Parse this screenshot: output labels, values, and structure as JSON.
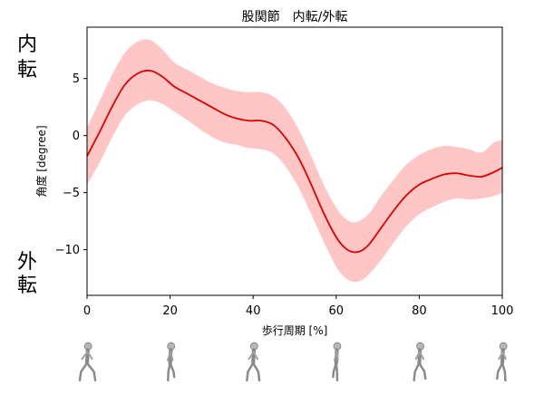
{
  "chart_data": {
    "type": "line",
    "title": "股関節　内転/外転",
    "xlabel": "歩行周期 [%]",
    "ylabel": "角度 [degree]",
    "upper_label": "内転",
    "lower_label": "外転",
    "xlim": [
      0,
      100
    ],
    "ylim": [
      -14,
      9.5
    ],
    "xticks": [
      0,
      20,
      40,
      60,
      80,
      100
    ],
    "yticks": [
      -10,
      -5,
      0,
      5
    ],
    "ytick_labels": [
      "−10",
      "−5",
      "0",
      "5"
    ],
    "grid": false,
    "line_color": "#dd0000",
    "band_color": "#ffc6c6",
    "series": [
      {
        "x": [
          0,
          3,
          6,
          9,
          12,
          15,
          18,
          21,
          24,
          27,
          30,
          33,
          36,
          39,
          42,
          45,
          48,
          51,
          54,
          57,
          60,
          62,
          64,
          66,
          68,
          71,
          74,
          77,
          80,
          83,
          86,
          89,
          92,
          95,
          98,
          100
        ],
        "values": [
          -1.8,
          0.3,
          2.5,
          4.4,
          5.4,
          5.7,
          5.2,
          4.3,
          3.7,
          3.1,
          2.5,
          1.9,
          1.5,
          1.3,
          1.3,
          0.9,
          -0.3,
          -2.0,
          -4.3,
          -6.8,
          -8.9,
          -9.8,
          -10.2,
          -10.1,
          -9.5,
          -8.0,
          -6.5,
          -5.2,
          -4.3,
          -3.8,
          -3.4,
          -3.3,
          -3.5,
          -3.6,
          -3.2,
          -2.8
        ],
        "lower": [
          -4.3,
          -2.4,
          -0.2,
          1.7,
          2.7,
          3.1,
          2.8,
          2.1,
          1.4,
          0.6,
          -0.1,
          -0.6,
          -0.8,
          -1.1,
          -1.2,
          -1.6,
          -2.8,
          -4.6,
          -6.9,
          -9.3,
          -11.5,
          -12.4,
          -12.8,
          -12.7,
          -12.1,
          -10.8,
          -9.3,
          -7.9,
          -6.9,
          -6.3,
          -5.8,
          -5.5,
          -5.6,
          -5.5,
          -5.3,
          -5.0
        ],
        "upper": [
          0.7,
          3.0,
          5.3,
          7.2,
          8.2,
          8.4,
          7.6,
          6.4,
          5.8,
          5.2,
          4.6,
          4.2,
          3.9,
          3.8,
          3.8,
          3.4,
          2.3,
          0.5,
          -1.8,
          -4.3,
          -6.3,
          -7.2,
          -7.6,
          -7.4,
          -6.8,
          -5.2,
          -3.8,
          -2.5,
          -1.7,
          -1.2,
          -0.9,
          -1.0,
          -1.2,
          -1.5,
          -0.6,
          -0.4
        ]
      }
    ]
  },
  "gait_figures": [
    {
      "position_pct": 0,
      "name": "walker-0"
    },
    {
      "position_pct": 20,
      "name": "walker-20"
    },
    {
      "position_pct": 40,
      "name": "walker-40"
    },
    {
      "position_pct": 60,
      "name": "walker-60"
    },
    {
      "position_pct": 80,
      "name": "walker-80"
    },
    {
      "position_pct": 100,
      "name": "walker-100"
    }
  ]
}
